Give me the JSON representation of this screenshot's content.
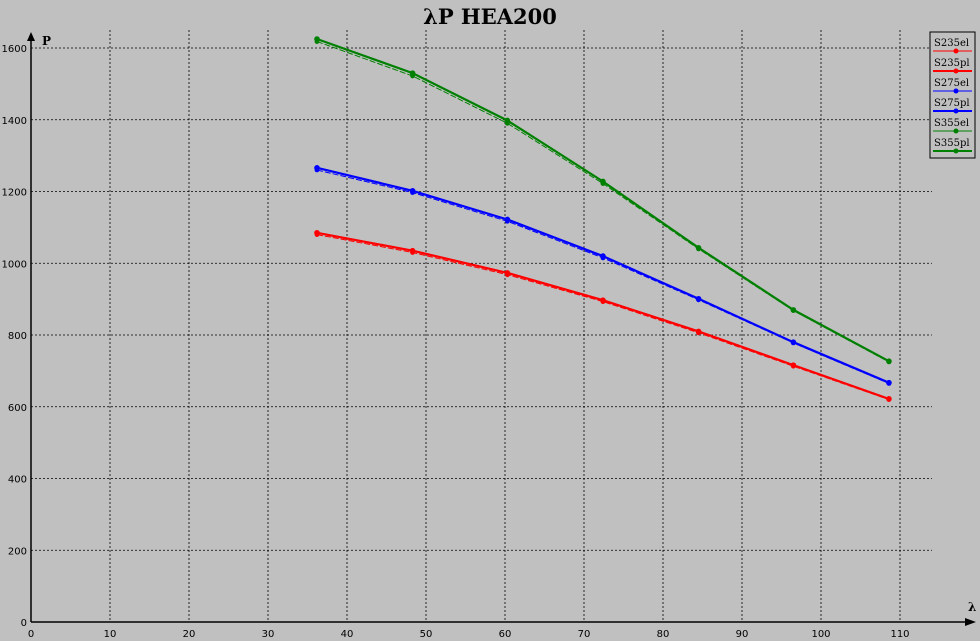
{
  "chart_data": {
    "type": "line",
    "title": "λP HEA200",
    "xlabel": "λ",
    "ylabel": "P",
    "xlim": [
      0,
      118
    ],
    "ylim": [
      0,
      1680
    ],
    "x_ticks": [
      0,
      10,
      20,
      30,
      40,
      50,
      60,
      70,
      80,
      90,
      100,
      110
    ],
    "y_ticks": [
      0,
      200,
      400,
      600,
      800,
      1000,
      1200,
      1400,
      1600
    ],
    "grid": true,
    "legend_position": "top-right",
    "x": [
      36.2,
      48.3,
      60.3,
      72.4,
      84.5,
      96.5,
      108.6
    ],
    "series": [
      {
        "name": "S235el",
        "color": "#ff0000",
        "style": "thin",
        "values": [
          1080,
          1030,
          968,
          893,
          806,
          713,
          620
        ]
      },
      {
        "name": "S235pl",
        "color": "#ff0000",
        "style": "thick",
        "values": [
          1085,
          1035,
          973,
          897,
          810,
          716,
          622
        ]
      },
      {
        "name": "S275el",
        "color": "#0000ff",
        "style": "thin",
        "values": [
          1260,
          1197,
          1117,
          1015,
          898,
          778,
          665
        ]
      },
      {
        "name": "S275pl",
        "color": "#0000ff",
        "style": "thick",
        "values": [
          1266,
          1202,
          1122,
          1020,
          901,
          780,
          667
        ]
      },
      {
        "name": "S355el",
        "color": "#008000",
        "style": "thin",
        "values": [
          1618,
          1522,
          1390,
          1222,
          1040,
          868,
          725
        ]
      },
      {
        "name": "S355pl",
        "color": "#008000",
        "style": "thick",
        "values": [
          1625,
          1530,
          1398,
          1228,
          1043,
          870,
          727
        ]
      }
    ]
  }
}
